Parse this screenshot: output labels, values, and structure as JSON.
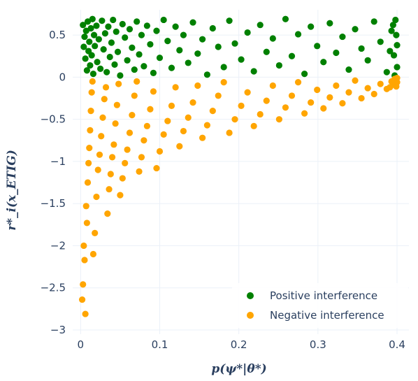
{
  "chart_data": {
    "type": "scatter",
    "title": "",
    "xlabel": "p(ψ*|θ*)",
    "ylabel": "r*_i(x_ETIG)",
    "xlim": [
      -0.01,
      0.415
    ],
    "ylim": [
      -3.05,
      0.8
    ],
    "x_ticks": [
      0,
      0.1,
      0.2,
      0.3,
      0.4
    ],
    "x_tick_labels": [
      "0",
      "0.1",
      "0.2",
      "0.3",
      "0.4"
    ],
    "y_ticks": [
      0.5,
      0,
      -0.5,
      -1,
      -1.5,
      -2,
      -2.5,
      -3
    ],
    "y_tick_labels": [
      "0.5",
      "0",
      "−0.5",
      "−1",
      "−1.5",
      "−2",
      "−2.5",
      "−3"
    ],
    "grid": true,
    "legend_position": "bottom-right",
    "series": [
      {
        "name": "Positive interference",
        "color": "#008000",
        "points": [
          [
            0.003,
            0.62
          ],
          [
            0.004,
            0.36
          ],
          [
            0.005,
            0.48
          ],
          [
            0.006,
            0.22
          ],
          [
            0.007,
            0.55
          ],
          [
            0.008,
            0.08
          ],
          [
            0.009,
            0.66
          ],
          [
            0.01,
            0.31
          ],
          [
            0.011,
            0.42
          ],
          [
            0.012,
            0.14
          ],
          [
            0.013,
            0.58
          ],
          [
            0.014,
            0.26
          ],
          [
            0.015,
            0.69
          ],
          [
            0.016,
            0.04
          ],
          [
            0.017,
            0.5
          ],
          [
            0.018,
            0.37
          ],
          [
            0.02,
            0.61
          ],
          [
            0.021,
            0.18
          ],
          [
            0.023,
            0.45
          ],
          [
            0.025,
            0.1
          ],
          [
            0.027,
            0.67
          ],
          [
            0.029,
            0.33
          ],
          [
            0.031,
            0.52
          ],
          [
            0.033,
            0.06
          ],
          [
            0.035,
            0.6
          ],
          [
            0.037,
            0.24
          ],
          [
            0.039,
            0.41
          ],
          [
            0.041,
            0.68
          ],
          [
            0.043,
            0.15
          ],
          [
            0.045,
            0.54
          ],
          [
            0.047,
            0.3
          ],
          [
            0.05,
            0.02
          ],
          [
            0.053,
            0.63
          ],
          [
            0.056,
            0.47
          ],
          [
            0.059,
            0.2
          ],
          [
            0.062,
            0.57
          ],
          [
            0.065,
            0.35
          ],
          [
            0.068,
            0.09
          ],
          [
            0.071,
            0.66
          ],
          [
            0.074,
            0.27
          ],
          [
            0.077,
            0.5
          ],
          [
            0.08,
            0.13
          ],
          [
            0.084,
            0.61
          ],
          [
            0.088,
            0.39
          ],
          [
            0.092,
            0.05
          ],
          [
            0.096,
            0.55
          ],
          [
            0.1,
            0.23
          ],
          [
            0.105,
            0.68
          ],
          [
            0.11,
            0.43
          ],
          [
            0.115,
            0.11
          ],
          [
            0.12,
            0.6
          ],
          [
            0.125,
            0.32
          ],
          [
            0.13,
            0.5
          ],
          [
            0.136,
            0.17
          ],
          [
            0.142,
            0.65
          ],
          [
            0.148,
            0.28
          ],
          [
            0.154,
            0.45
          ],
          [
            0.16,
            0.03
          ],
          [
            0.167,
            0.58
          ],
          [
            0.174,
            0.36
          ],
          [
            0.181,
            0.12
          ],
          [
            0.188,
            0.67
          ],
          [
            0.195,
            0.4
          ],
          [
            0.203,
            0.21
          ],
          [
            0.211,
            0.53
          ],
          [
            0.219,
            0.07
          ],
          [
            0.227,
            0.62
          ],
          [
            0.235,
            0.3
          ],
          [
            0.243,
            0.46
          ],
          [
            0.251,
            0.14
          ],
          [
            0.259,
            0.69
          ],
          [
            0.267,
            0.25
          ],
          [
            0.275,
            0.51
          ],
          [
            0.283,
            0.04
          ],
          [
            0.291,
            0.6
          ],
          [
            0.299,
            0.37
          ],
          [
            0.307,
            0.18
          ],
          [
            0.315,
            0.64
          ],
          [
            0.323,
            0.29
          ],
          [
            0.331,
            0.48
          ],
          [
            0.339,
            0.09
          ],
          [
            0.347,
            0.57
          ],
          [
            0.355,
            0.34
          ],
          [
            0.363,
            0.2
          ],
          [
            0.371,
            0.66
          ],
          [
            0.379,
            0.42
          ],
          [
            0.387,
            0.06
          ],
          [
            0.393,
            0.55
          ],
          [
            0.396,
            0.26
          ],
          [
            0.398,
            0.68
          ],
          [
            0.4,
            0.38
          ],
          [
            0.4,
            0.12
          ],
          [
            0.399,
            0.5
          ],
          [
            0.397,
            0.02
          ],
          [
            0.395,
            0.62
          ],
          [
            0.391,
            0.31
          ]
        ]
      },
      {
        "name": "Negative interference",
        "color": "#FFA500",
        "points": [
          [
            0.002,
            -2.64
          ],
          [
            0.003,
            -2.46
          ],
          [
            0.004,
            -2.0
          ],
          [
            0.005,
            -2.17
          ],
          [
            0.006,
            -2.81
          ],
          [
            0.007,
            -1.53
          ],
          [
            0.008,
            -1.73
          ],
          [
            0.009,
            -1.25
          ],
          [
            0.01,
            -1.02
          ],
          [
            0.011,
            -0.84
          ],
          [
            0.012,
            -0.63
          ],
          [
            0.013,
            -0.4
          ],
          [
            0.014,
            -0.18
          ],
          [
            0.015,
            -0.05
          ],
          [
            0.016,
            -2.1
          ],
          [
            0.018,
            -1.85
          ],
          [
            0.02,
            -1.42
          ],
          [
            0.022,
            -1.1
          ],
          [
            0.024,
            -0.92
          ],
          [
            0.026,
            -0.7
          ],
          [
            0.028,
            -0.48
          ],
          [
            0.03,
            -0.26
          ],
          [
            0.032,
            -0.12
          ],
          [
            0.034,
            -1.62
          ],
          [
            0.036,
            -1.33
          ],
          [
            0.038,
            -1.15
          ],
          [
            0.04,
            -0.95
          ],
          [
            0.042,
            -0.8
          ],
          [
            0.044,
            -0.55
          ],
          [
            0.046,
            -0.33
          ],
          [
            0.048,
            -0.08
          ],
          [
            0.05,
            -1.4
          ],
          [
            0.053,
            -1.2
          ],
          [
            0.056,
            -1.02
          ],
          [
            0.059,
            -0.86
          ],
          [
            0.062,
            -0.66
          ],
          [
            0.065,
            -0.45
          ],
          [
            0.068,
            -0.22
          ],
          [
            0.071,
            -0.05
          ],
          [
            0.074,
            -1.12
          ],
          [
            0.077,
            -0.95
          ],
          [
            0.08,
            -0.75
          ],
          [
            0.084,
            -0.58
          ],
          [
            0.088,
            -0.38
          ],
          [
            0.092,
            -0.17
          ],
          [
            0.096,
            -1.08
          ],
          [
            0.1,
            -0.88
          ],
          [
            0.105,
            -0.68
          ],
          [
            0.11,
            -0.52
          ],
          [
            0.115,
            -0.34
          ],
          [
            0.12,
            -0.12
          ],
          [
            0.125,
            -0.82
          ],
          [
            0.13,
            -0.64
          ],
          [
            0.136,
            -0.48
          ],
          [
            0.142,
            -0.3
          ],
          [
            0.148,
            -0.1
          ],
          [
            0.154,
            -0.72
          ],
          [
            0.16,
            -0.57
          ],
          [
            0.167,
            -0.4
          ],
          [
            0.174,
            -0.22
          ],
          [
            0.181,
            -0.06
          ],
          [
            0.188,
            -0.66
          ],
          [
            0.195,
            -0.5
          ],
          [
            0.203,
            -0.34
          ],
          [
            0.211,
            -0.18
          ],
          [
            0.219,
            -0.58
          ],
          [
            0.227,
            -0.44
          ],
          [
            0.235,
            -0.28
          ],
          [
            0.243,
            -0.1
          ],
          [
            0.251,
            -0.5
          ],
          [
            0.259,
            -0.36
          ],
          [
            0.267,
            -0.22
          ],
          [
            0.275,
            -0.06
          ],
          [
            0.283,
            -0.43
          ],
          [
            0.291,
            -0.3
          ],
          [
            0.299,
            -0.15
          ],
          [
            0.307,
            -0.37
          ],
          [
            0.315,
            -0.24
          ],
          [
            0.323,
            -0.1
          ],
          [
            0.331,
            -0.31
          ],
          [
            0.339,
            -0.18
          ],
          [
            0.347,
            -0.04
          ],
          [
            0.355,
            -0.25
          ],
          [
            0.363,
            -0.13
          ],
          [
            0.371,
            -0.2
          ],
          [
            0.379,
            -0.08
          ],
          [
            0.387,
            -0.14
          ],
          [
            0.393,
            -0.05
          ],
          [
            0.396,
            -0.09
          ],
          [
            0.398,
            -0.03
          ],
          [
            0.4,
            -0.06
          ],
          [
            0.4,
            -0.01
          ],
          [
            0.399,
            -0.11
          ],
          [
            0.397,
            -0.02
          ],
          [
            0.395,
            -0.07
          ],
          [
            0.391,
            -0.12
          ]
        ]
      }
    ]
  }
}
